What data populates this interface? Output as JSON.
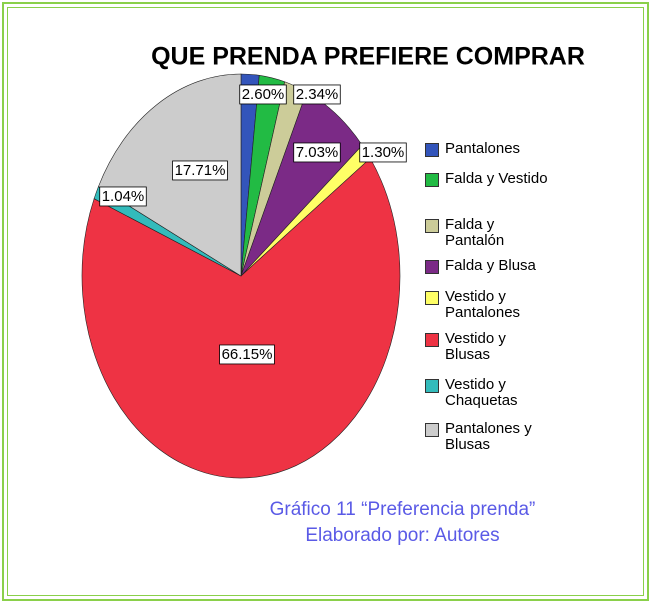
{
  "chart_data": {
    "type": "pie",
    "title": "QUE PRENDA PREFIERE COMPRAR",
    "categories": [
      "Pantalones",
      "Falda y Vestido",
      "Falda y Pantalón",
      "Falda y Blusa",
      "Vestido y Pantalones",
      "Vestido y Blusas",
      "Vestido y Chaquetas",
      "Pantalones y Blusas"
    ],
    "values": [
      1.83,
      2.6,
      2.34,
      7.03,
      1.3,
      66.15,
      1.04,
      17.71
    ],
    "value_labels": [
      null,
      "2.60%",
      "2.34%",
      "7.03%",
      "1.30%",
      "66.15%",
      "1.04%",
      "17.71%"
    ],
    "colors": [
      "#3355bb",
      "#22bb44",
      "#cccc99",
      "#7b2a86",
      "#ffff66",
      "#ee3344",
      "#33bbbb",
      "#cccccc"
    ],
    "caption": "Gráfico 11 “Preferencia prenda” Elaborado  por: Autores"
  }
}
